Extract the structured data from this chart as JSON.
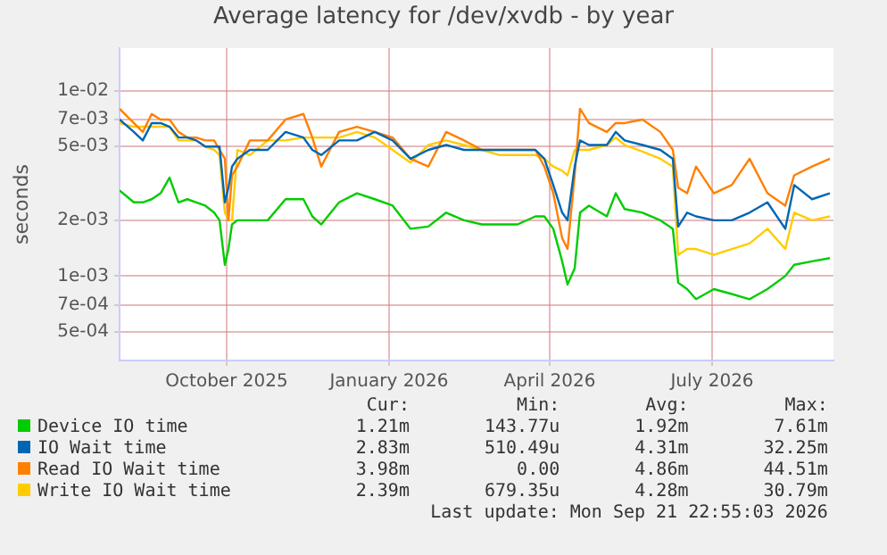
{
  "chart_data": {
    "type": "line",
    "title": "Average latency for /dev/xvdb - by year",
    "ylabel": "seconds",
    "log": "y",
    "grid": true,
    "legend": "bottom",
    "marker": "none",
    "line_style": "solid",
    "x": [
      "2025-08-17",
      "2025-08-25",
      "2025-08-30",
      "2025-09-04",
      "2025-09-09",
      "2025-09-14",
      "2025-09-19",
      "2025-09-24",
      "2025-09-29",
      "2025-10-04",
      "2025-10-09",
      "2025-10-12",
      "2025-10-15",
      "2025-10-17",
      "2025-10-19",
      "2025-10-22",
      "2025-10-29",
      "2025-11-08",
      "2025-11-18",
      "2025-11-28",
      "2025-12-03",
      "2025-12-08",
      "2025-12-18",
      "2025-12-28",
      "2026-01-07",
      "2026-01-17",
      "2026-01-27",
      "2026-02-06",
      "2026-02-16",
      "2026-02-26",
      "2026-03-08",
      "2026-03-18",
      "2026-03-28",
      "2026-04-07",
      "2026-04-12",
      "2026-04-17",
      "2026-04-22",
      "2026-04-25",
      "2026-04-29",
      "2026-05-02",
      "2026-05-07",
      "2026-05-17",
      "2026-05-22",
      "2026-05-27",
      "2026-06-06",
      "2026-06-16",
      "2026-06-23",
      "2026-06-26",
      "2026-07-01",
      "2026-07-06",
      "2026-07-16",
      "2026-07-26",
      "2026-08-05",
      "2026-08-15",
      "2026-08-25",
      "2026-08-30",
      "2026-09-09",
      "2026-09-19"
    ],
    "series": [
      {
        "name": "Device IO time",
        "color": "#00cc00",
        "values": [
          0.0029,
          0.0025,
          0.0025,
          0.0026,
          0.0028,
          0.0034,
          0.0025,
          0.0026,
          0.0025,
          0.0024,
          0.0022,
          0.002,
          0.00115,
          0.0014,
          0.0019,
          0.002,
          0.002,
          0.002,
          0.0026,
          0.0026,
          0.0021,
          0.0019,
          0.0025,
          0.0028,
          0.0026,
          0.0024,
          0.0018,
          0.00185,
          0.0022,
          0.002,
          0.0019,
          0.0019,
          0.0019,
          0.0021,
          0.0021,
          0.0018,
          0.0012,
          0.0009,
          0.0011,
          0.0022,
          0.0024,
          0.0021,
          0.0028,
          0.0023,
          0.0022,
          0.002,
          0.0018,
          0.00092,
          0.00085,
          0.00075,
          0.00085,
          0.0008,
          0.00075,
          0.00085,
          0.001,
          0.00115,
          0.0012,
          0.00125
        ]
      },
      {
        "name": "IO Wait time",
        "color": "#0066b3",
        "values": [
          0.007,
          0.006,
          0.0054,
          0.0067,
          0.0067,
          0.0064,
          0.0056,
          0.0056,
          0.0054,
          0.005,
          0.005,
          0.005,
          0.0025,
          0.003,
          0.0039,
          0.0043,
          0.0048,
          0.0048,
          0.006,
          0.0056,
          0.0048,
          0.0045,
          0.0054,
          0.0054,
          0.006,
          0.0054,
          0.0043,
          0.0048,
          0.0051,
          0.0048,
          0.0048,
          0.0048,
          0.0048,
          0.0048,
          0.0043,
          0.0031,
          0.0022,
          0.002,
          0.0039,
          0.0054,
          0.0051,
          0.0051,
          0.006,
          0.0054,
          0.0051,
          0.0048,
          0.0043,
          0.00185,
          0.0022,
          0.0021,
          0.002,
          0.002,
          0.0022,
          0.0025,
          0.0018,
          0.0031,
          0.0026,
          0.0028
        ]
      },
      {
        "name": "Read IO Wait time",
        "color": "#ff8000",
        "values": [
          0.008,
          0.0067,
          0.006,
          0.0075,
          0.007,
          0.007,
          0.006,
          0.0056,
          0.0056,
          0.0054,
          0.0054,
          0.0048,
          0.0043,
          0.002,
          0.0035,
          0.0039,
          0.0054,
          0.0054,
          0.007,
          0.0075,
          0.0056,
          0.0039,
          0.006,
          0.0064,
          0.006,
          0.0056,
          0.0043,
          0.0039,
          0.006,
          0.0054,
          0.0048,
          0.0048,
          0.0048,
          0.0048,
          0.0039,
          0.0028,
          0.0016,
          0.0014,
          0.0035,
          0.008,
          0.0067,
          0.006,
          0.0067,
          0.0067,
          0.007,
          0.006,
          0.0048,
          0.003,
          0.0028,
          0.0039,
          0.0028,
          0.0031,
          0.0043,
          0.0028,
          0.0024,
          0.0035,
          0.0039,
          0.0043
        ]
      },
      {
        "name": "Write IO Wait time",
        "color": "#ffcc00",
        "values": [
          0.0067,
          0.0064,
          0.0064,
          0.0064,
          0.0064,
          0.0064,
          0.0054,
          0.0054,
          0.0054,
          0.005,
          0.0048,
          0.0045,
          0.0022,
          0.002,
          0.002,
          0.0048,
          0.0045,
          0.0054,
          0.0054,
          0.0056,
          0.0056,
          0.0056,
          0.0056,
          0.006,
          0.0056,
          0.0048,
          0.0041,
          0.0051,
          0.0054,
          0.0051,
          0.0048,
          0.0045,
          0.0045,
          0.0045,
          0.0043,
          0.0039,
          0.0037,
          0.0035,
          0.0048,
          0.0048,
          0.0048,
          0.0051,
          0.0056,
          0.0051,
          0.0047,
          0.0043,
          0.0039,
          0.0013,
          0.0014,
          0.0014,
          0.0013,
          0.0014,
          0.0015,
          0.0018,
          0.0014,
          0.0022,
          0.002,
          0.0021
        ]
      }
    ],
    "xlim": [
      "2025-08-17",
      "2026-09-21"
    ],
    "xticks": [
      {
        "value": "2025-10-16",
        "label": "October 2025"
      },
      {
        "value": "2026-01-15",
        "label": "January 2026"
      },
      {
        "value": "2026-04-15",
        "label": "April 2026"
      },
      {
        "value": "2026-07-15",
        "label": "July 2026"
      }
    ],
    "ylim": [
      0.00035,
      0.017
    ],
    "yticks": [
      {
        "value": 0.0005,
        "label": "5e-04"
      },
      {
        "value": 0.0007,
        "label": "7e-04"
      },
      {
        "value": 0.001,
        "label": "1e-03"
      },
      {
        "value": 0.002,
        "label": "2e-03"
      },
      {
        "value": 0.005,
        "label": "5e-03"
      },
      {
        "value": 0.007,
        "label": "7e-03"
      },
      {
        "value": 0.01,
        "label": "1e-02"
      }
    ],
    "annotations": [
      "Cur:",
      "Min:",
      "Avg:",
      "Max:",
      "1.21m",
      "143.77u",
      "1.92m",
      "7.61m",
      "2.83m",
      "510.49u",
      "4.31m",
      "32.25m",
      "3.98m",
      "0.00",
      "4.86m",
      "44.51m",
      "2.39m",
      "679.35u",
      "4.28m",
      "30.79m",
      "Last update: Mon Sep 21 22:55:03 2026"
    ]
  }
}
